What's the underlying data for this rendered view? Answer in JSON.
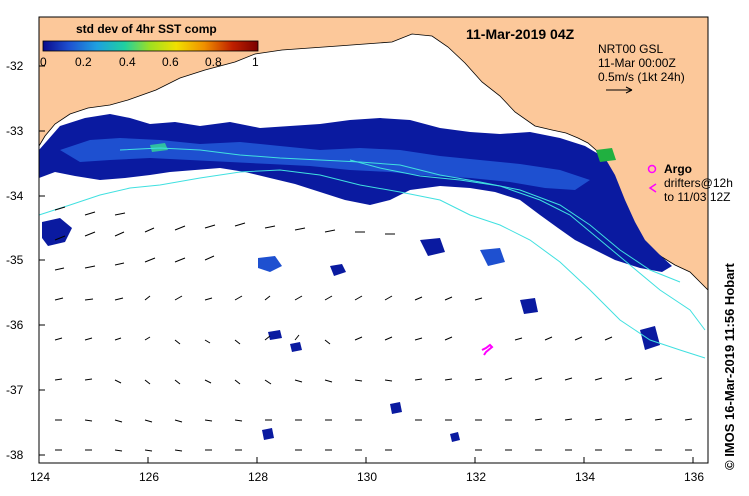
{
  "title": "11-Mar-2019 04Z",
  "colorbar": {
    "label": "std dev of 4hr SST comp",
    "ticks": [
      "0",
      "0.2",
      "0.4",
      "0.6",
      "0.8",
      "1"
    ],
    "colors": [
      "#0a0a8c",
      "#1e50d0",
      "#1ea0e0",
      "#20d0a0",
      "#a0e020",
      "#f0e000",
      "#f09000",
      "#c02000",
      "#7a0000"
    ]
  },
  "current_legend": {
    "line1": "NRT00 GSL",
    "line2": "11-Mar 00:00Z",
    "line3": "0.5m/s (1kt 24h)"
  },
  "argo": {
    "label": "Argo",
    "color": "#ff00ff"
  },
  "drifters": {
    "line1": "drifters@12h",
    "line2": "to 11/03 12Z"
  },
  "axes": {
    "x_ticks": [
      "124",
      "126",
      "128",
      "130",
      "132",
      "134",
      "136"
    ],
    "y_ticks": [
      "-32",
      "-33",
      "-34",
      "-35",
      "-36",
      "-37",
      "-38"
    ]
  },
  "credit": "© IMOS 16-Mar-2019 11:56 Hobart",
  "colors": {
    "land": "#fcc89a",
    "ocean": "#ffffff",
    "sst_dark": "#0a1aa0",
    "sst_mid": "#1e50d0",
    "contour": "#40e0e0"
  }
}
